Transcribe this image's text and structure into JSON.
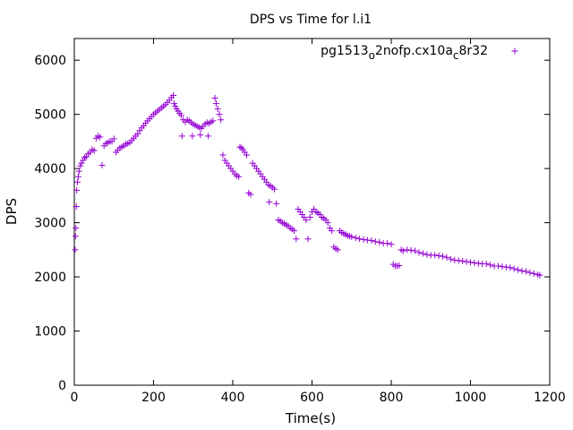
{
  "chart_data": {
    "type": "scatter",
    "title": "DPS vs Time for l.i1",
    "xlabel": "Time(s)",
    "ylabel": "DPS",
    "xlim": [
      0,
      1200
    ],
    "ylim": [
      0,
      6400
    ],
    "xticks": [
      0,
      200,
      400,
      600,
      800,
      1000,
      1200
    ],
    "yticks": [
      0,
      1000,
      2000,
      3000,
      4000,
      5000,
      6000
    ],
    "grid": false,
    "legend": {
      "placement": "top-right",
      "marker": "+"
    },
    "series": [
      {
        "name_parts": [
          "pg1513",
          "o",
          "2nofp.cx10a",
          "c",
          "8r32"
        ],
        "color": "#9400d3",
        "marker": "+",
        "points": [
          [
            2,
            2500
          ],
          [
            3,
            2750
          ],
          [
            4,
            2900
          ],
          [
            5,
            3300
          ],
          [
            6,
            3600
          ],
          [
            8,
            3750
          ],
          [
            10,
            3850
          ],
          [
            12,
            3950
          ],
          [
            15,
            4050
          ],
          [
            18,
            4100
          ],
          [
            22,
            4150
          ],
          [
            26,
            4200
          ],
          [
            30,
            4220
          ],
          [
            35,
            4270
          ],
          [
            40,
            4300
          ],
          [
            45,
            4350
          ],
          [
            50,
            4330
          ],
          [
            55,
            4560
          ],
          [
            60,
            4600
          ],
          [
            65,
            4580
          ],
          [
            70,
            4060
          ],
          [
            75,
            4420
          ],
          [
            80,
            4460
          ],
          [
            85,
            4480
          ],
          [
            90,
            4500
          ],
          [
            95,
            4500
          ],
          [
            100,
            4550
          ],
          [
            105,
            4300
          ],
          [
            110,
            4340
          ],
          [
            115,
            4380
          ],
          [
            120,
            4400
          ],
          [
            125,
            4420
          ],
          [
            130,
            4450
          ],
          [
            135,
            4460
          ],
          [
            140,
            4480
          ],
          [
            145,
            4520
          ],
          [
            150,
            4560
          ],
          [
            155,
            4600
          ],
          [
            160,
            4640
          ],
          [
            165,
            4700
          ],
          [
            170,
            4750
          ],
          [
            175,
            4790
          ],
          [
            180,
            4840
          ],
          [
            185,
            4880
          ],
          [
            190,
            4920
          ],
          [
            195,
            4960
          ],
          [
            200,
            5000
          ],
          [
            205,
            5030
          ],
          [
            210,
            5060
          ],
          [
            215,
            5090
          ],
          [
            220,
            5120
          ],
          [
            225,
            5150
          ],
          [
            230,
            5180
          ],
          [
            235,
            5220
          ],
          [
            240,
            5260
          ],
          [
            245,
            5310
          ],
          [
            250,
            5350
          ],
          [
            252,
            5200
          ],
          [
            255,
            5150
          ],
          [
            258,
            5100
          ],
          [
            262,
            5060
          ],
          [
            266,
            5020
          ],
          [
            270,
            4980
          ],
          [
            272,
            4600
          ],
          [
            275,
            4900
          ],
          [
            280,
            4860
          ],
          [
            285,
            4900
          ],
          [
            290,
            4880
          ],
          [
            295,
            4850
          ],
          [
            298,
            4600
          ],
          [
            300,
            4820
          ],
          [
            305,
            4800
          ],
          [
            310,
            4780
          ],
          [
            315,
            4760
          ],
          [
            318,
            4620
          ],
          [
            320,
            4740
          ],
          [
            325,
            4780
          ],
          [
            330,
            4820
          ],
          [
            335,
            4850
          ],
          [
            338,
            4600
          ],
          [
            340,
            4830
          ],
          [
            345,
            4860
          ],
          [
            350,
            4880
          ],
          [
            355,
            5300
          ],
          [
            358,
            5200
          ],
          [
            362,
            5100
          ],
          [
            366,
            5000
          ],
          [
            370,
            4900
          ],
          [
            375,
            4250
          ],
          [
            380,
            4150
          ],
          [
            385,
            4100
          ],
          [
            390,
            4050
          ],
          [
            395,
            4000
          ],
          [
            400,
            3950
          ],
          [
            405,
            3900
          ],
          [
            410,
            3870
          ],
          [
            415,
            3850
          ],
          [
            418,
            4400
          ],
          [
            422,
            4380
          ],
          [
            426,
            4350
          ],
          [
            430,
            4300
          ],
          [
            435,
            4250
          ],
          [
            440,
            3550
          ],
          [
            445,
            3520
          ],
          [
            450,
            4100
          ],
          [
            455,
            4050
          ],
          [
            460,
            4000
          ],
          [
            465,
            3950
          ],
          [
            470,
            3900
          ],
          [
            475,
            3850
          ],
          [
            480,
            3800
          ],
          [
            485,
            3750
          ],
          [
            490,
            3700
          ],
          [
            492,
            3380
          ],
          [
            495,
            3680
          ],
          [
            500,
            3650
          ],
          [
            505,
            3620
          ],
          [
            510,
            3350
          ],
          [
            515,
            3050
          ],
          [
            520,
            3030
          ],
          [
            525,
            3000
          ],
          [
            530,
            2980
          ],
          [
            535,
            2960
          ],
          [
            540,
            2940
          ],
          [
            545,
            2900
          ],
          [
            550,
            2880
          ],
          [
            555,
            2850
          ],
          [
            560,
            2700
          ],
          [
            565,
            3250
          ],
          [
            570,
            3200
          ],
          [
            575,
            3150
          ],
          [
            580,
            3100
          ],
          [
            585,
            3050
          ],
          [
            590,
            2700
          ],
          [
            595,
            3100
          ],
          [
            600,
            3200
          ],
          [
            605,
            3250
          ],
          [
            610,
            3200
          ],
          [
            615,
            3180
          ],
          [
            620,
            3150
          ],
          [
            625,
            3100
          ],
          [
            630,
            3080
          ],
          [
            635,
            3050
          ],
          [
            640,
            3000
          ],
          [
            645,
            2900
          ],
          [
            650,
            2850
          ],
          [
            655,
            2550
          ],
          [
            660,
            2520
          ],
          [
            665,
            2500
          ],
          [
            670,
            2850
          ],
          [
            675,
            2820
          ],
          [
            680,
            2800
          ],
          [
            685,
            2780
          ],
          [
            690,
            2760
          ],
          [
            695,
            2750
          ],
          [
            700,
            2740
          ],
          [
            710,
            2720
          ],
          [
            720,
            2700
          ],
          [
            730,
            2690
          ],
          [
            740,
            2680
          ],
          [
            750,
            2670
          ],
          [
            760,
            2650
          ],
          [
            770,
            2640
          ],
          [
            780,
            2620
          ],
          [
            790,
            2620
          ],
          [
            800,
            2600
          ],
          [
            805,
            2230
          ],
          [
            810,
            2200
          ],
          [
            815,
            2200
          ],
          [
            820,
            2210
          ],
          [
            825,
            2500
          ],
          [
            830,
            2480
          ],
          [
            840,
            2500
          ],
          [
            850,
            2490
          ],
          [
            860,
            2480
          ],
          [
            870,
            2450
          ],
          [
            880,
            2430
          ],
          [
            890,
            2410
          ],
          [
            900,
            2400
          ],
          [
            910,
            2400
          ],
          [
            920,
            2390
          ],
          [
            930,
            2380
          ],
          [
            940,
            2360
          ],
          [
            950,
            2330
          ],
          [
            960,
            2310
          ],
          [
            970,
            2300
          ],
          [
            980,
            2290
          ],
          [
            990,
            2280
          ],
          [
            1000,
            2270
          ],
          [
            1010,
            2260
          ],
          [
            1020,
            2250
          ],
          [
            1030,
            2240
          ],
          [
            1040,
            2240
          ],
          [
            1050,
            2220
          ],
          [
            1060,
            2200
          ],
          [
            1070,
            2200
          ],
          [
            1080,
            2190
          ],
          [
            1090,
            2180
          ],
          [
            1100,
            2170
          ],
          [
            1110,
            2150
          ],
          [
            1120,
            2130
          ],
          [
            1130,
            2110
          ],
          [
            1140,
            2100
          ],
          [
            1150,
            2080
          ],
          [
            1160,
            2060
          ],
          [
            1170,
            2040
          ],
          [
            1175,
            2030
          ]
        ]
      }
    ]
  }
}
